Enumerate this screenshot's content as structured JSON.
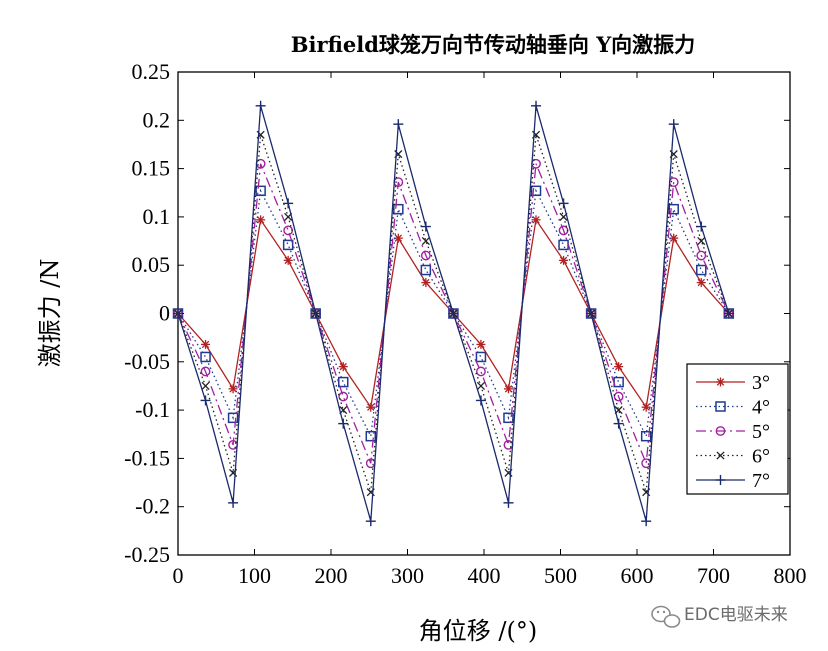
{
  "chart_data": {
    "type": "line",
    "title": "Birfield球笼万向节传动轴垂向 Y向激振力",
    "xlabel": "角位移 /(°)",
    "ylabel": "激振力 /N",
    "xlim": [
      0,
      800
    ],
    "ylim": [
      -0.25,
      0.25
    ],
    "x_ticks": [
      0,
      100,
      200,
      300,
      400,
      500,
      600,
      700,
      800
    ],
    "x_tick_labels": [
      "0",
      "100",
      "200",
      "300",
      "400",
      "500",
      "600",
      "700",
      "800"
    ],
    "y_ticks": [
      0.25,
      0.2,
      0.15,
      0.1,
      0.05,
      0,
      -0.05,
      -0.1,
      -0.15,
      -0.2,
      -0.25
    ],
    "y_tick_labels": [
      "0.25",
      "0.2",
      "0.15",
      "0.1",
      "0.05",
      "0",
      "-0.05",
      "-0.1",
      "-0.15",
      "-0.2",
      "-0.25"
    ],
    "x": [
      0,
      36,
      72,
      108,
      144,
      180,
      216,
      252,
      288,
      324,
      360,
      396,
      432,
      468,
      504,
      540,
      576,
      612,
      648,
      684,
      720
    ],
    "series": [
      {
        "name": "3°",
        "color": "#b22222",
        "marker": "star",
        "dash": "",
        "values": [
          0,
          -0.032,
          -0.078,
          0.097,
          0.055,
          0,
          -0.055,
          -0.097,
          0.078,
          0.032,
          0,
          -0.032,
          -0.078,
          0.097,
          0.055,
          0,
          -0.055,
          -0.097,
          0.078,
          0.032,
          0
        ]
      },
      {
        "name": "4°",
        "color": "#1f3a93",
        "marker": "square",
        "dash": "1.5 3",
        "values": [
          0,
          -0.045,
          -0.108,
          0.127,
          0.071,
          0,
          -0.071,
          -0.127,
          0.108,
          0.045,
          0,
          -0.045,
          -0.108,
          0.127,
          0.071,
          0,
          -0.071,
          -0.127,
          0.108,
          0.045,
          0
        ]
      },
      {
        "name": "5°",
        "color": "#a020a0",
        "marker": "circle",
        "dash": "10 4 2 4",
        "values": [
          0,
          -0.06,
          -0.136,
          0.155,
          0.086,
          0,
          -0.086,
          -0.155,
          0.136,
          0.06,
          0,
          -0.06,
          -0.136,
          0.155,
          0.086,
          0,
          -0.086,
          -0.155,
          0.136,
          0.06,
          0
        ]
      },
      {
        "name": "6°",
        "color": "#222222",
        "marker": "x",
        "dash": "1.5 3",
        "values": [
          0,
          -0.075,
          -0.165,
          0.185,
          0.1,
          0,
          -0.1,
          -0.185,
          0.165,
          0.075,
          0,
          -0.075,
          -0.165,
          0.185,
          0.1,
          0,
          -0.1,
          -0.185,
          0.165,
          0.075,
          0
        ]
      },
      {
        "name": "7°",
        "color": "#1a2a6c",
        "marker": "plus",
        "dash": "",
        "values": [
          0,
          -0.09,
          -0.196,
          0.215,
          0.114,
          0,
          -0.114,
          -0.215,
          0.196,
          0.09,
          0,
          -0.09,
          -0.196,
          0.215,
          0.114,
          0,
          -0.114,
          -0.215,
          0.196,
          0.09,
          0
        ]
      }
    ],
    "grid": false,
    "legend_position": "bottom-right"
  },
  "watermark": {
    "text": "EDC电驱未来",
    "icon": "wechat-icon",
    "color": "#8a8a8a"
  }
}
